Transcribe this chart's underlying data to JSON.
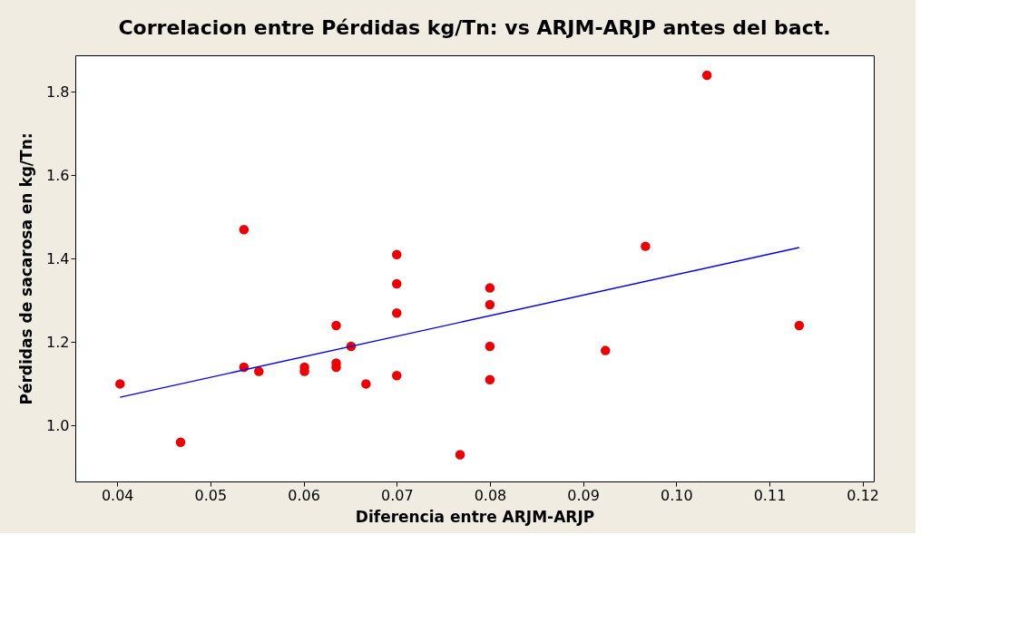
{
  "chart_data": {
    "type": "scatter",
    "title": "Correlacion entre Pérdidas kg/Tn: vs ARJM-ARJP antes del bact.",
    "xlabel": "Diferencia entre ARJM-ARJP",
    "ylabel": "Pérdidas de sacarosa en kg/Tn:",
    "xlim": [
      0.0355,
      0.1212
    ],
    "ylim": [
      0.866,
      1.888
    ],
    "xticks": [
      {
        "value": 0.04,
        "label": "0.04"
      },
      {
        "value": 0.05,
        "label": "0.05"
      },
      {
        "value": 0.06,
        "label": "0.06"
      },
      {
        "value": 0.07,
        "label": "0.07"
      },
      {
        "value": 0.08,
        "label": "0.08"
      },
      {
        "value": 0.09,
        "label": "0.09"
      },
      {
        "value": 0.1,
        "label": "0.10"
      },
      {
        "value": 0.11,
        "label": "0.11"
      },
      {
        "value": 0.12,
        "label": "0.12"
      }
    ],
    "yticks": [
      {
        "value": 1.0,
        "label": "1.0"
      },
      {
        "value": 1.2,
        "label": "1.2"
      },
      {
        "value": 1.4,
        "label": "1.4"
      },
      {
        "value": 1.6,
        "label": "1.6"
      },
      {
        "value": 1.8,
        "label": "1.8"
      }
    ],
    "grid": false,
    "series": [
      {
        "marker": "circle",
        "color": "#ee0000",
        "x": [
          0.0403,
          0.0468,
          0.0536,
          0.0536,
          0.0552,
          0.0601,
          0.0601,
          0.0635,
          0.0635,
          0.0635,
          0.0651,
          0.0667,
          0.07,
          0.07,
          0.07,
          0.07,
          0.0768,
          0.08,
          0.08,
          0.08,
          0.08,
          0.0924,
          0.0967,
          0.1033,
          0.1132
        ],
        "values": [
          1.1,
          0.96,
          1.47,
          1.14,
          1.13,
          1.14,
          1.13,
          1.24,
          1.15,
          1.14,
          1.19,
          1.1,
          1.41,
          1.34,
          1.27,
          1.12,
          0.93,
          1.33,
          1.29,
          1.19,
          1.11,
          1.18,
          1.43,
          1.84,
          1.24
        ]
      },
      {
        "type": "line",
        "marker": "none",
        "color": "#0000ee",
        "x": [
          0.0403,
          0.1132
        ],
        "values": [
          1.068,
          1.427
        ]
      }
    ]
  }
}
